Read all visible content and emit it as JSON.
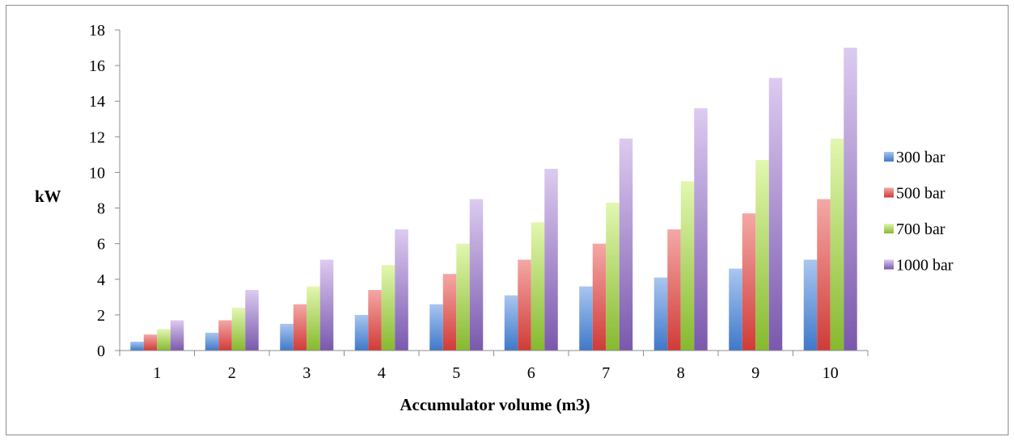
{
  "chart_data": {
    "type": "bar",
    "categories": [
      "1",
      "2",
      "3",
      "4",
      "5",
      "6",
      "7",
      "8",
      "9",
      "10"
    ],
    "series": [
      {
        "name": "300 bar",
        "values": [
          0.5,
          1.0,
          1.5,
          2.0,
          2.6,
          3.1,
          3.6,
          4.1,
          4.6,
          5.1
        ]
      },
      {
        "name": "500 bar",
        "values": [
          0.9,
          1.7,
          2.6,
          3.4,
          4.3,
          5.1,
          6.0,
          6.8,
          7.7,
          8.5
        ]
      },
      {
        "name": "700 bar",
        "values": [
          1.2,
          2.4,
          3.6,
          4.8,
          6.0,
          7.2,
          8.3,
          9.5,
          10.7,
          11.9
        ]
      },
      {
        "name": "1000 bar",
        "values": [
          1.7,
          3.4,
          5.1,
          6.8,
          8.5,
          10.2,
          11.9,
          13.6,
          15.3,
          17.0
        ]
      }
    ],
    "xlabel": "Accumulator volume (m3)",
    "ylabel": "kW",
    "ylim": [
      0,
      18
    ],
    "yticks": [
      0,
      2,
      4,
      6,
      8,
      10,
      12,
      14,
      16,
      18
    ],
    "grid": false,
    "legend": "right",
    "colors": [
      {
        "light": "#a9c6f0",
        "dark": "#3f78c9"
      },
      {
        "light": "#f4a8a6",
        "dark": "#d03b37"
      },
      {
        "light": "#e2f7b0",
        "dark": "#86b92e"
      },
      {
        "light": "#dccbf0",
        "dark": "#7a58ad"
      }
    ]
  }
}
